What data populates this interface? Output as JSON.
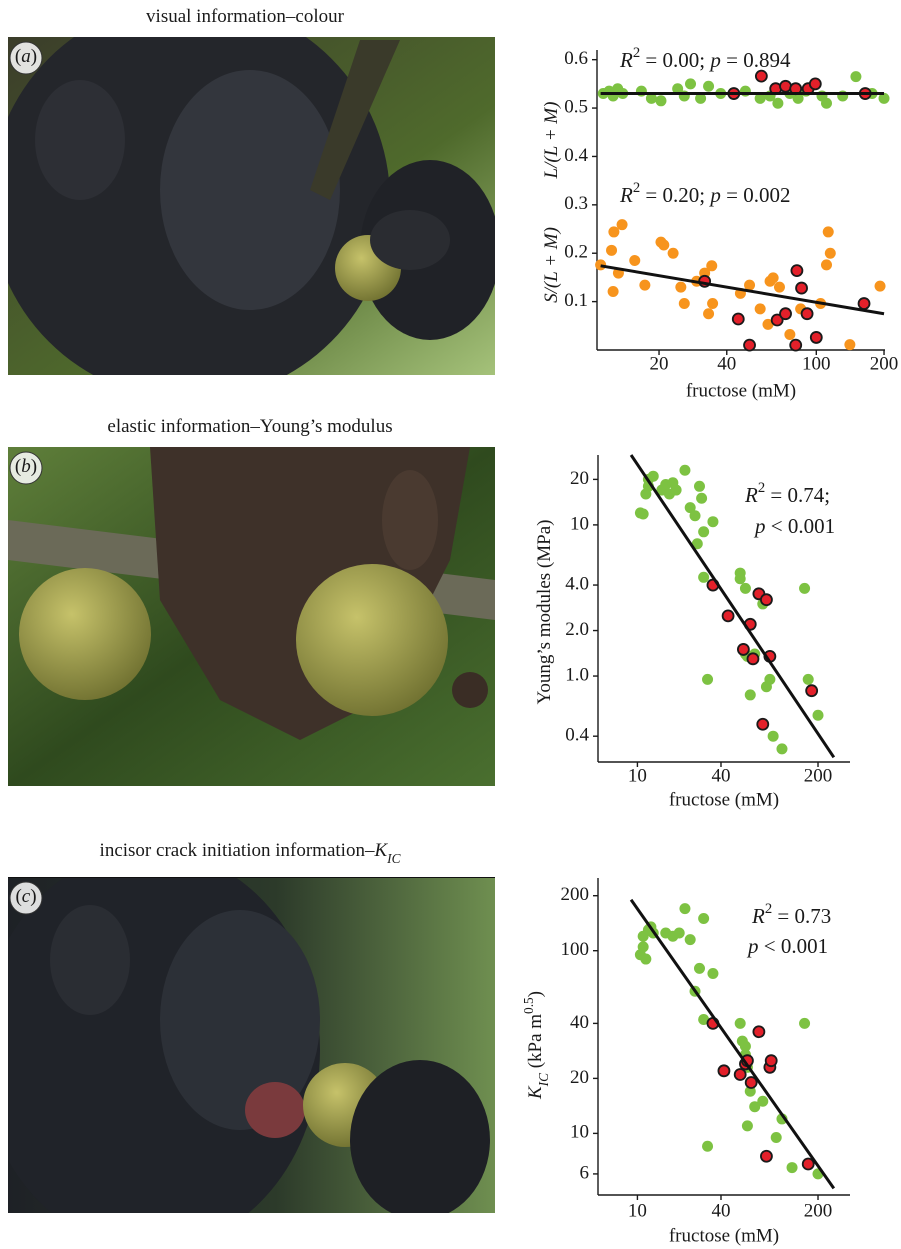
{
  "chart_data": [
    {
      "type": "scatter",
      "caption": [
        {
          "text": "visual information–colour"
        }
      ],
      "panel_label": [
        {
          "text": "("
        },
        {
          "text": "a",
          "style": "italic"
        },
        {
          "text": ")"
        }
      ],
      "xlabel": "fructose (mM)",
      "ylabels": [
        [
          {
            "text": "L/(L + M)",
            "style": "italic"
          }
        ],
        [
          {
            "text": "S/(L + M)",
            "style": "italic"
          }
        ]
      ],
      "xscale": "log",
      "yscale": "linear",
      "xlim": [
        10.6,
        202
      ],
      "ylim": [
        0,
        0.62
      ],
      "xticks": [
        20,
        40,
        100,
        200
      ],
      "yticks": [
        0.1,
        0.2,
        0.3,
        0.4,
        0.5,
        0.6
      ],
      "annotations": [
        [
          {
            "text": "R",
            "style": "italic"
          },
          {
            "text": "2",
            "style": "sup"
          },
          {
            "text": " = 0.00; "
          },
          {
            "text": "p",
            "style": "italic"
          },
          {
            "text": " = 0.894"
          }
        ],
        [
          {
            "text": "R",
            "style": "italic"
          },
          {
            "text": "2",
            "style": "sup"
          },
          {
            "text": " = 0.20; "
          },
          {
            "text": "p",
            "style": "italic"
          },
          {
            "text": " = 0.002"
          }
        ]
      ],
      "series": [
        {
          "color": "#7dc242",
          "x": [
            11.3,
            12.0,
            12.5,
            13.1,
            13.8,
            16.7,
            18.5,
            20.4,
            24.2,
            25.9,
            27.6,
            30.6,
            33.2,
            37.6,
            48.4,
            56.3,
            62.3,
            67.5,
            76.3,
            83,
            90,
            106,
            111,
            131,
            150,
            177,
            200
          ],
          "values": [
            0.53,
            0.535,
            0.525,
            0.54,
            0.53,
            0.535,
            0.52,
            0.515,
            0.54,
            0.525,
            0.55,
            0.52,
            0.545,
            0.53,
            0.535,
            0.52,
            0.525,
            0.51,
            0.53,
            0.52,
            0.535,
            0.525,
            0.51,
            0.525,
            0.565,
            0.53,
            0.52
          ]
        },
        {
          "color": "#e3202a",
          "edge": "#1a1a1a",
          "x": [
            57,
            66,
            73,
            81,
            92,
            99,
            43,
            165
          ],
          "values": [
            0.566,
            0.54,
            0.545,
            0.54,
            0.54,
            0.55,
            0.53,
            0.53
          ]
        },
        {
          "color": "#f7941d",
          "x": [
            11.0,
            12.3,
            12.6,
            13.7,
            12.5,
            13.2,
            15.6,
            17.3,
            20.4,
            21.0,
            23.1,
            25.0,
            25.9,
            29.4,
            31.9,
            34.3,
            34.6,
            50.5,
            62.3,
            64.3,
            68.6,
            61.0,
            76.3,
            85.2,
            104.5,
            111,
            113,
            115.4,
            141,
            192,
            46,
            56.3,
            33.2
          ],
          "values": [
            0.176,
            0.206,
            0.244,
            0.259,
            0.121,
            0.159,
            0.185,
            0.134,
            0.223,
            0.217,
            0.2,
            0.13,
            0.096,
            0.142,
            0.159,
            0.174,
            0.096,
            0.134,
            0.142,
            0.149,
            0.13,
            0.053,
            0.032,
            0.085,
            0.096,
            0.176,
            0.244,
            0.2,
            0.011,
            0.132,
            0.117,
            0.085,
            0.075
          ]
        },
        {
          "color": "#e3202a",
          "edge": "#1a1a1a",
          "x": [
            31.9,
            45,
            50.5,
            67,
            73,
            82,
            86,
            91,
            100,
            81,
            163
          ],
          "values": [
            0.142,
            0.064,
            0.01,
            0.062,
            0.075,
            0.164,
            0.128,
            0.075,
            0.026,
            0.01,
            0.096
          ]
        }
      ],
      "fits": [
        {
          "x": [
            11,
            200
          ],
          "values": [
            0.53,
            0.53
          ]
        },
        {
          "x": [
            11,
            200
          ],
          "values": [
            0.174,
            0.075
          ]
        }
      ]
    },
    {
      "type": "scatter",
      "caption": [
        {
          "text": "elastic information–Young’s modulus"
        }
      ],
      "panel_label": [
        {
          "text": "("
        },
        {
          "text": "b",
          "style": "italic"
        },
        {
          "text": ")"
        }
      ],
      "xlabel": "fructose (mM)",
      "ylabels": [
        [
          {
            "text": "Young’s modules (MPa)"
          }
        ]
      ],
      "xscale": "log",
      "yscale": "log",
      "xlim": [
        5.2,
        340
      ],
      "ylim": [
        0.27,
        29
      ],
      "xticks": [
        10,
        40,
        200
      ],
      "yticks": [
        0.4,
        {
          "value": 1,
          "label": "1.0"
        },
        {
          "value": 2,
          "label": "2.0"
        },
        {
          "value": 4,
          "label": "4.0"
        },
        10,
        20
      ],
      "annotations": [
        [
          {
            "text": "R",
            "style": "italic"
          },
          {
            "text": "2",
            "style": "sup"
          },
          {
            "text": " = 0.74;"
          }
        ],
        [
          {
            "text": "p",
            "style": "italic"
          },
          {
            "text": " < 0.001"
          }
        ]
      ],
      "series": [
        {
          "color": "#7dc242",
          "x": [
            10.5,
            11,
            11.5,
            12,
            12,
            13,
            15,
            16,
            17,
            18,
            19,
            22,
            24,
            26,
            27,
            28,
            29,
            30,
            30,
            32,
            35,
            55,
            55,
            60,
            60,
            62,
            65,
            70,
            80,
            85,
            90,
            95,
            110,
            160,
            170,
            200
          ],
          "values": [
            12,
            11.8,
            16,
            20,
            18,
            21,
            17,
            18.5,
            16,
            19,
            17,
            23,
            13,
            11.5,
            7.5,
            18,
            15,
            9,
            4.5,
            0.95,
            10.5,
            4.8,
            4.4,
            1.4,
            3.8,
            1.35,
            0.75,
            1.4,
            3.0,
            0.85,
            0.95,
            0.4,
            0.33,
            3.8,
            0.95,
            0.55
          ]
        },
        {
          "color": "#e3202a",
          "edge": "#1a1a1a",
          "x": [
            35,
            45,
            65,
            75,
            85,
            58,
            68,
            90,
            80,
            180
          ],
          "values": [
            4.0,
            2.5,
            2.2,
            3.5,
            3.2,
            1.5,
            1.3,
            1.35,
            0.48,
            0.8
          ]
        }
      ],
      "fits": [
        {
          "x": [
            9,
            260
          ],
          "values": [
            29,
            0.29
          ]
        }
      ]
    },
    {
      "type": "scatter",
      "caption": [
        {
          "text": "incisor crack initiation information–"
        },
        {
          "text": "K",
          "style": "italic"
        },
        {
          "text": "IC",
          "style": "isub"
        }
      ],
      "panel_label": [
        {
          "text": "("
        },
        {
          "text": "c",
          "style": "italic"
        },
        {
          "text": ")"
        }
      ],
      "xlabel": "fructose (mM)",
      "ylabels": [
        [
          {
            "text": "K",
            "style": "italic"
          },
          {
            "text": "IC",
            "style": "isub"
          },
          {
            "text": " (kPa m"
          },
          {
            "text": "0.5",
            "style": "sup"
          },
          {
            "text": ")"
          }
        ]
      ],
      "xscale": "log",
      "yscale": "log",
      "xlim": [
        5.2,
        340
      ],
      "ylim": [
        4.6,
        250
      ],
      "xticks": [
        10,
        40,
        200
      ],
      "yticks": [
        6,
        10,
        20,
        40,
        100,
        200
      ],
      "annotations": [
        [
          {
            "text": "R",
            "style": "italic"
          },
          {
            "text": "2",
            "style": "sup"
          },
          {
            "text": " = 0.73"
          }
        ],
        [
          {
            "text": "p",
            "style": "italic"
          },
          {
            "text": " < 0.001"
          }
        ]
      ],
      "series": [
        {
          "color": "#7dc242",
          "x": [
            10.5,
            11,
            11.5,
            11,
            12,
            12.5,
            13,
            16,
            18,
            20,
            22,
            24,
            26,
            28,
            30,
            32,
            35,
            30,
            55,
            57,
            60,
            62,
            62,
            65,
            70,
            80,
            85,
            100,
            110,
            130,
            160,
            200,
            60
          ],
          "values": [
            95,
            105,
            90,
            120,
            130,
            135,
            125,
            125,
            120,
            125,
            170,
            115,
            60,
            80,
            150,
            8.5,
            75,
            42,
            40,
            32,
            30,
            23,
            11,
            17,
            14,
            15,
            7.5,
            9.5,
            12,
            6.5,
            40,
            6,
            27
          ]
        },
        {
          "color": "#e3202a",
          "edge": "#1a1a1a",
          "x": [
            35,
            42,
            55,
            60,
            62,
            66,
            75,
            85,
            90,
            92,
            170
          ],
          "values": [
            40,
            22,
            21,
            24,
            25,
            19,
            36,
            7.5,
            23,
            25,
            6.8
          ]
        }
      ],
      "fits": [
        {
          "x": [
            9,
            260
          ],
          "values": [
            190,
            5
          ]
        }
      ]
    }
  ]
}
